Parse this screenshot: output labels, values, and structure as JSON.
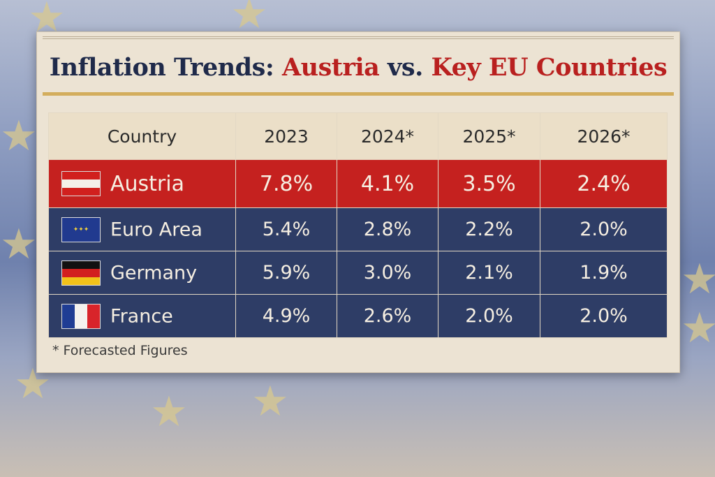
{
  "title": {
    "part1": "Inflation Trends: ",
    "part2": "Austria",
    "part3": " vs. ",
    "part4": "Key EU Countries"
  },
  "colors": {
    "austria_row": "#c5211f",
    "other_rows": "#2e3d66",
    "header": "#ebdfc8",
    "accent_gold": "#d3ad5c"
  },
  "chart_data": {
    "type": "table",
    "columns": [
      "Country",
      "2023",
      "2024*",
      "2025*",
      "2026*"
    ],
    "rows": [
      {
        "country": "Austria",
        "flag": "austria-flag-icon",
        "values": [
          "7.8%",
          "4.1%",
          "3.5%",
          "2.4%"
        ]
      },
      {
        "country": "Euro Area",
        "flag": "eu-flag-icon",
        "values": [
          "5.4%",
          "2.8%",
          "2.2%",
          "2.0%"
        ]
      },
      {
        "country": "Germany",
        "flag": "germany-flag-icon",
        "values": [
          "5.9%",
          "3.0%",
          "2.1%",
          "1.9%"
        ]
      },
      {
        "country": "France",
        "flag": "france-flag-icon",
        "values": [
          "4.9%",
          "2.6%",
          "2.0%",
          "2.0%"
        ]
      }
    ],
    "footnote": "* Forecasted Figures"
  }
}
